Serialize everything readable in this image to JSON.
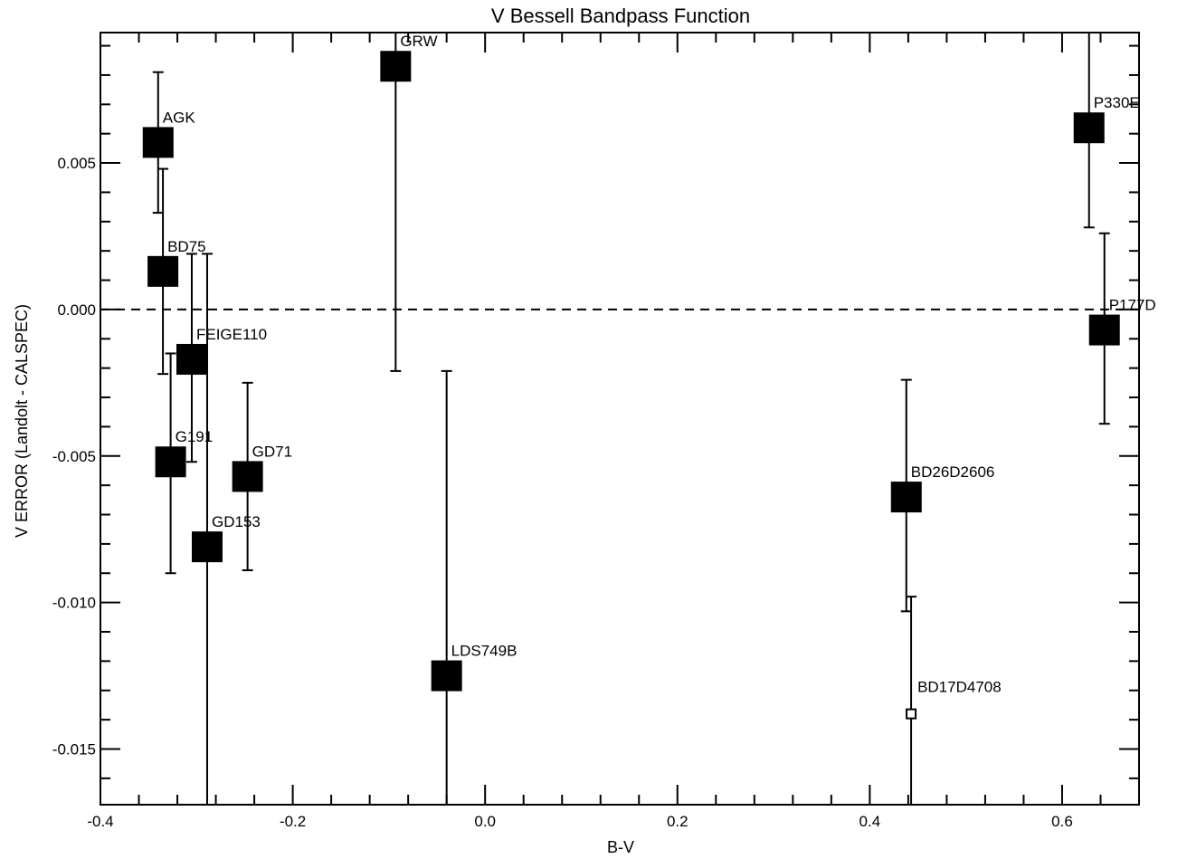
{
  "chart_data": {
    "type": "scatter",
    "title": "V Bessell Bandpass Function",
    "xlabel": "B-V",
    "ylabel": "V ERROR (Landolt - CALSPEC)",
    "xlim": [
      -0.4,
      0.68
    ],
    "ylim": [
      -0.0169,
      0.00945
    ],
    "x_ticks": [
      -0.4,
      -0.2,
      0.0,
      0.2,
      0.4,
      0.6
    ],
    "x_tick_labels": [
      "-0.4",
      "-0.2",
      "0.0",
      "0.2",
      "0.4",
      "0.6"
    ],
    "y_ticks": [
      -0.015,
      -0.01,
      -0.005,
      0.0,
      0.005
    ],
    "y_tick_labels": [
      "-0.015",
      "-0.010",
      "-0.005",
      "0.000",
      "0.005"
    ],
    "reference_line": {
      "y": 0.0,
      "style": "dashed"
    },
    "grid": false,
    "points": [
      {
        "name": "AGK",
        "label": "AGK",
        "x": -0.34,
        "y": 0.0057,
        "err_low": 0.0033,
        "err_high": 0.0081,
        "marker": "filled-square"
      },
      {
        "name": "BD75",
        "label": "BD75",
        "x": -0.335,
        "y": 0.0013,
        "err_low": -0.0022,
        "err_high": 0.0048,
        "marker": "filled-square"
      },
      {
        "name": "FEIGE110",
        "label": "FEIGE110",
        "x": -0.305,
        "y": -0.0017,
        "err_low": -0.0052,
        "err_high": 0.0019,
        "marker": "filled-square"
      },
      {
        "name": "G191",
        "label": "G191",
        "x": -0.327,
        "y": -0.0052,
        "err_low": -0.009,
        "err_high": -0.0015,
        "marker": "filled-square"
      },
      {
        "name": "GD153",
        "label": "GD153",
        "x": -0.289,
        "y": -0.0081,
        "err_low": -0.0175,
        "err_high": 0.0019,
        "marker": "filled-square"
      },
      {
        "name": "GD71",
        "label": "GD71",
        "x": -0.247,
        "y": -0.0057,
        "err_low": -0.0089,
        "err_high": -0.0025,
        "marker": "filled-square"
      },
      {
        "name": "GRW",
        "label": "GRW",
        "x": -0.093,
        "y": 0.0083,
        "err_low": -0.0021,
        "err_high": 0.0105,
        "marker": "filled-square"
      },
      {
        "name": "LDS749B",
        "label": "LDS749B",
        "x": -0.04,
        "y": -0.0125,
        "err_low": -0.0175,
        "err_high": -0.0021,
        "marker": "filled-square"
      },
      {
        "name": "BD26D2606",
        "label": "BD26D2606",
        "x": 0.438,
        "y": -0.0064,
        "err_low": -0.0103,
        "err_high": -0.0024,
        "marker": "filled-square"
      },
      {
        "name": "BD17D4708",
        "label": "BD17D4708",
        "x": 0.443,
        "y": -0.0138,
        "err_low": -0.0175,
        "err_high": -0.0098,
        "marker": "open-square"
      },
      {
        "name": "P330E",
        "label": "P330E",
        "x": 0.628,
        "y": 0.0062,
        "err_low": 0.0028,
        "err_high": 0.0105,
        "marker": "filled-square"
      },
      {
        "name": "P177D",
        "label": "P177D",
        "x": 0.644,
        "y": -0.0007,
        "err_low": -0.0039,
        "err_high": 0.0026,
        "marker": "filled-square"
      }
    ]
  }
}
